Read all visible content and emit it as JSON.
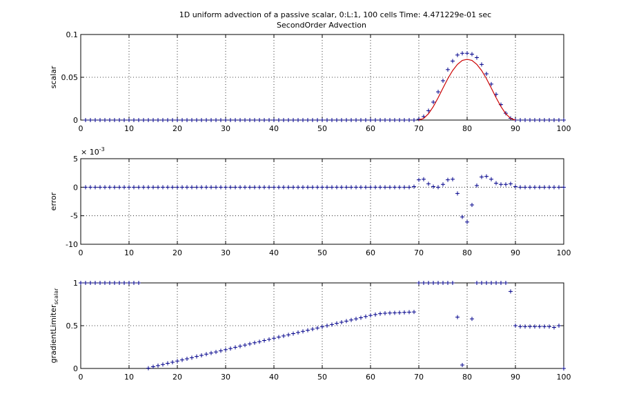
{
  "figure": {
    "title_line1": "1D uniform advection of a passive scalar, 0:L:1, 100 cells Time: 4.471229e-01 sec",
    "title_line2": "SecondOrder Advection"
  },
  "chart_data": [
    {
      "type": "scatter",
      "ylabel": "scalar",
      "xlim": [
        0,
        100
      ],
      "ylim": [
        0,
        0.1
      ],
      "xticks": [
        "0",
        "10",
        "20",
        "30",
        "40",
        "50",
        "60",
        "70",
        "80",
        "90",
        "100"
      ],
      "yticks": [
        {
          "v": 0,
          "label": "0"
        },
        {
          "v": 0.05,
          "label": "0.05"
        },
        {
          "v": 0.1,
          "label": "0.1"
        }
      ],
      "grid": true,
      "series": [
        {
          "style": "markers-plus",
          "color": "#00008b",
          "x": [
            1,
            2,
            3,
            4,
            5,
            6,
            7,
            8,
            9,
            10,
            11,
            12,
            13,
            14,
            15,
            16,
            17,
            18,
            19,
            20,
            21,
            22,
            23,
            24,
            25,
            26,
            27,
            28,
            29,
            30,
            31,
            32,
            33,
            34,
            35,
            36,
            37,
            38,
            39,
            40,
            41,
            42,
            43,
            44,
            45,
            46,
            47,
            48,
            49,
            50,
            51,
            52,
            53,
            54,
            55,
            56,
            57,
            58,
            59,
            60,
            61,
            62,
            63,
            64,
            65,
            66,
            67,
            68,
            69,
            70,
            71,
            72,
            73,
            74,
            75,
            76,
            77,
            78,
            79,
            80,
            81,
            82,
            83,
            84,
            85,
            86,
            87,
            88,
            89,
            90,
            91,
            92,
            93,
            94,
            95,
            96,
            97,
            98,
            99,
            100
          ],
          "y": [
            0,
            0,
            0,
            0,
            0,
            0,
            0,
            0,
            0,
            0,
            0,
            0,
            0,
            0,
            0,
            0,
            0,
            0,
            0,
            0,
            0,
            0,
            0,
            0,
            0,
            0,
            0,
            0,
            0,
            0,
            0,
            0,
            0,
            0,
            0,
            0,
            0,
            0,
            0,
            0,
            0,
            0,
            0,
            0,
            0,
            0,
            0,
            0,
            0,
            0,
            0,
            0,
            0,
            0,
            0,
            0,
            0,
            0,
            0,
            0,
            0,
            0,
            0,
            0,
            0,
            0,
            0,
            0,
            0,
            0.001,
            0.004,
            0.011,
            0.021,
            0.033,
            0.046,
            0.059,
            0.069,
            0.076,
            0.078,
            0.078,
            0.077,
            0.073,
            0.065,
            0.054,
            0.042,
            0.03,
            0.018,
            0.008,
            0.002,
            0,
            0,
            0,
            0,
            0,
            0,
            0,
            0,
            0,
            0,
            0
          ]
        },
        {
          "style": "line",
          "color": "#cc0000",
          "x": [
            70,
            71,
            72,
            73,
            74,
            75,
            76,
            77,
            78,
            79,
            80,
            81,
            82,
            83,
            84,
            85,
            86,
            87,
            88,
            89,
            90
          ],
          "y": [
            0,
            0.0019,
            0.0074,
            0.0158,
            0.0261,
            0.0374,
            0.0484,
            0.0579,
            0.0651,
            0.0697,
            0.071,
            0.0697,
            0.0651,
            0.0579,
            0.0484,
            0.0374,
            0.0261,
            0.0158,
            0.0074,
            0.0019,
            0
          ]
        }
      ]
    },
    {
      "type": "scatter",
      "ylabel": "error",
      "exponent_label": "× 10",
      "exponent_power": "-3",
      "xlim": [
        0,
        100
      ],
      "ylim": [
        -10,
        5
      ],
      "xticks": [
        "0",
        "10",
        "20",
        "30",
        "40",
        "50",
        "60",
        "70",
        "80",
        "90",
        "100"
      ],
      "yticks": [
        {
          "v": 5,
          "label": "5"
        },
        {
          "v": 0,
          "label": "0"
        },
        {
          "v": -5,
          "label": "-5"
        },
        {
          "v": -10,
          "label": "-10"
        }
      ],
      "grid": true,
      "series": [
        {
          "style": "markers-plus",
          "color": "#00008b",
          "x": [
            1,
            2,
            3,
            4,
            5,
            6,
            7,
            8,
            9,
            10,
            11,
            12,
            13,
            14,
            15,
            16,
            17,
            18,
            19,
            20,
            21,
            22,
            23,
            24,
            25,
            26,
            27,
            28,
            29,
            30,
            31,
            32,
            33,
            34,
            35,
            36,
            37,
            38,
            39,
            40,
            41,
            42,
            43,
            44,
            45,
            46,
            47,
            48,
            49,
            50,
            51,
            52,
            53,
            54,
            55,
            56,
            57,
            58,
            59,
            60,
            61,
            62,
            63,
            64,
            65,
            66,
            67,
            68,
            69,
            70,
            71,
            72,
            73,
            74,
            75,
            76,
            77,
            78,
            79,
            80,
            81,
            82,
            83,
            84,
            85,
            86,
            87,
            88,
            89,
            90,
            91,
            92,
            93,
            94,
            95,
            96,
            97,
            98,
            99,
            100
          ],
          "y": [
            0,
            0,
            0,
            0,
            0,
            0,
            0,
            0,
            0,
            0,
            0,
            0,
            0,
            0,
            0,
            0,
            0,
            0,
            0,
            0,
            0,
            0,
            0,
            0,
            0,
            0,
            0,
            0,
            0,
            0,
            0,
            0,
            0,
            0,
            0,
            0,
            0,
            0,
            0,
            0,
            0,
            0,
            0,
            0,
            0,
            0,
            0,
            0,
            0,
            0,
            0,
            0,
            0,
            0,
            0,
            0,
            0,
            0,
            0,
            0,
            0,
            0,
            0,
            0,
            0,
            0,
            0,
            0,
            0.1,
            1.3,
            1.4,
            0.6,
            0.1,
            0.0,
            0.5,
            1.3,
            1.4,
            -1.1,
            -5.2,
            -6.1,
            -3.1,
            0.3,
            1.8,
            1.9,
            1.4,
            0.7,
            0.5,
            0.5,
            0.6,
            0.1,
            0,
            0,
            0,
            0,
            0,
            0,
            0,
            0,
            0,
            0
          ]
        }
      ]
    },
    {
      "type": "scatter",
      "ylabel": "gradientLimiter",
      "ylabel_sub": "scalar",
      "xlim": [
        0,
        100
      ],
      "ylim": [
        0,
        1
      ],
      "xticks": [
        "0",
        "10",
        "20",
        "30",
        "40",
        "50",
        "60",
        "70",
        "80",
        "90",
        "100"
      ],
      "yticks": [
        {
          "v": 0,
          "label": "0"
        },
        {
          "v": 0.5,
          "label": "0.5"
        },
        {
          "v": 1,
          "label": "1"
        }
      ],
      "grid": true,
      "series": [
        {
          "style": "markers-plus",
          "color": "#00008b",
          "x": [
            0,
            1,
            2,
            3,
            4,
            5,
            6,
            7,
            8,
            9,
            10,
            11,
            12,
            14,
            15,
            16,
            17,
            18,
            19,
            20,
            21,
            22,
            23,
            24,
            25,
            26,
            27,
            28,
            29,
            30,
            31,
            32,
            33,
            34,
            35,
            36,
            37,
            38,
            39,
            40,
            41,
            42,
            43,
            44,
            45,
            46,
            47,
            48,
            49,
            50,
            51,
            52,
            53,
            54,
            55,
            56,
            57,
            58,
            59,
            60,
            61,
            62,
            63,
            64,
            65,
            66,
            67,
            68,
            69,
            70,
            71,
            72,
            73,
            74,
            75,
            76,
            77,
            78,
            79,
            81,
            82,
            83,
            84,
            85,
            86,
            87,
            88,
            89,
            90,
            91,
            92,
            93,
            94,
            95,
            96,
            97,
            98,
            99
          ],
          "y": [
            1,
            1,
            1,
            1,
            1,
            1,
            1,
            1,
            1,
            1,
            1,
            1,
            1,
            0.003,
            0.02,
            0.033,
            0.046,
            0.06,
            0.073,
            0.087,
            0.1,
            0.113,
            0.126,
            0.14,
            0.153,
            0.167,
            0.18,
            0.193,
            0.207,
            0.22,
            0.233,
            0.247,
            0.26,
            0.273,
            0.287,
            0.3,
            0.313,
            0.327,
            0.34,
            0.353,
            0.367,
            0.38,
            0.393,
            0.407,
            0.42,
            0.433,
            0.447,
            0.46,
            0.473,
            0.487,
            0.5,
            0.513,
            0.527,
            0.54,
            0.553,
            0.567,
            0.58,
            0.593,
            0.607,
            0.62,
            0.63,
            0.64,
            0.645,
            0.648,
            0.65,
            0.652,
            0.655,
            0.658,
            0.66,
            1,
            1,
            1,
            1,
            1,
            1,
            1,
            1,
            0.6,
            0.04,
            0.58,
            1,
            1,
            1,
            1,
            1,
            1,
            1,
            0.9,
            0.5,
            0.49,
            0.49,
            0.49,
            0.49,
            0.49,
            0.49,
            0.49,
            0.48,
            0.5
          ]
        },
        {
          "style": "markers-plus",
          "color": "#00008b",
          "x": [
            100
          ],
          "y": [
            0
          ]
        }
      ]
    }
  ]
}
